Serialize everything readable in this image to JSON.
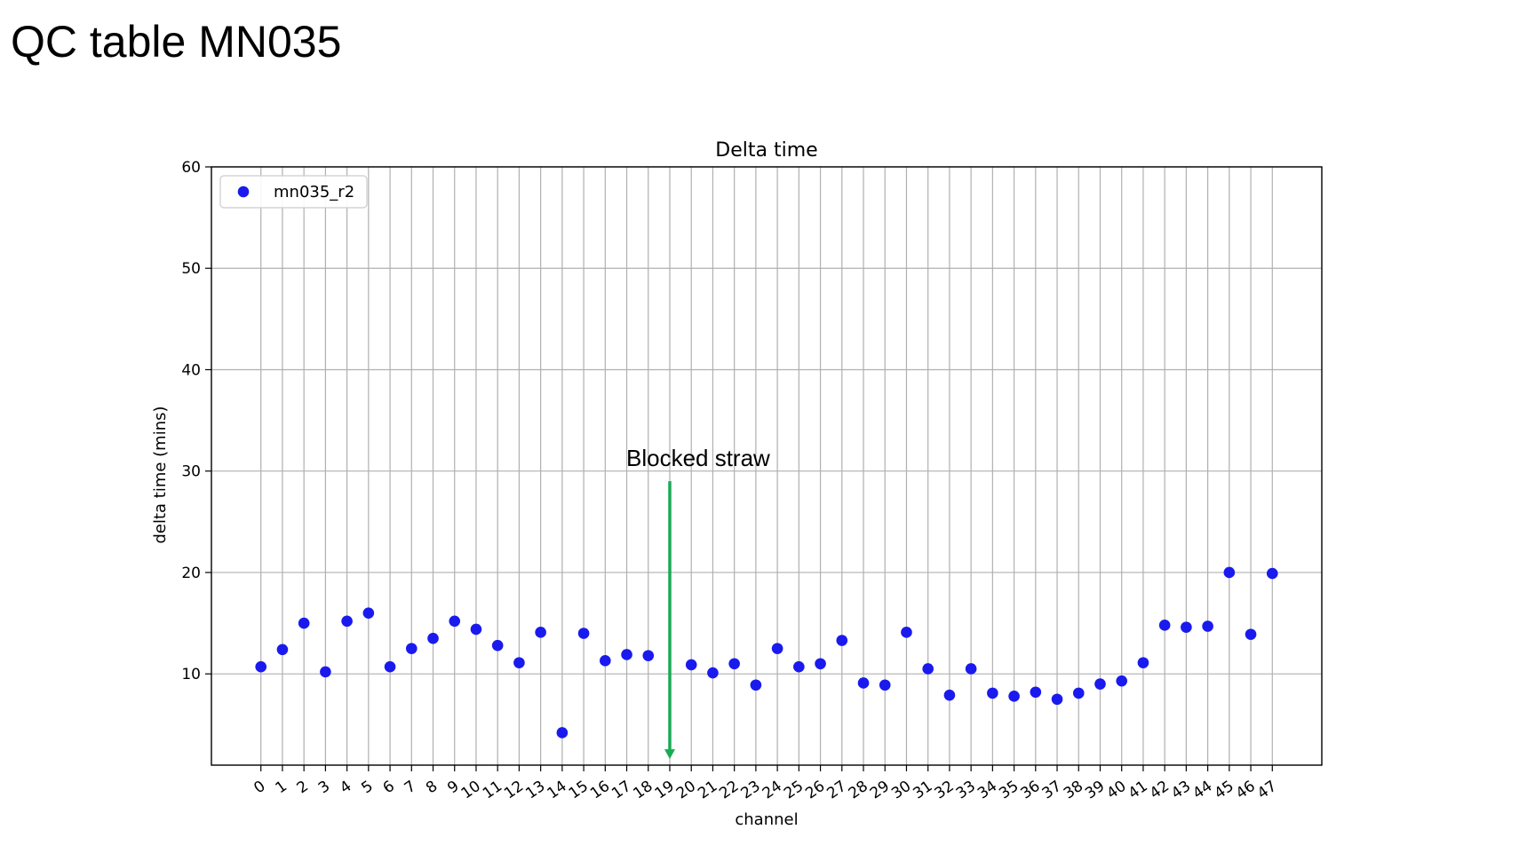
{
  "slide": {
    "title": "QC table MN035"
  },
  "chart_data": {
    "type": "scatter",
    "title": "Delta time",
    "xlabel": "channel",
    "ylabel": "delta time (mins)",
    "xlim": [
      -2.3,
      49.3
    ],
    "ylim": [
      1,
      60
    ],
    "yticks": [
      10,
      20,
      30,
      40,
      50,
      60
    ],
    "grid": true,
    "legend_position": "top-left",
    "series": [
      {
        "name": "mn035_r2",
        "color": "#1a1aee",
        "marker": "circle",
        "x": [
          0,
          1,
          2,
          3,
          4,
          5,
          6,
          7,
          8,
          9,
          10,
          11,
          12,
          13,
          14,
          15,
          16,
          17,
          18,
          19,
          20,
          21,
          22,
          23,
          24,
          25,
          26,
          27,
          28,
          29,
          30,
          31,
          32,
          33,
          34,
          35,
          36,
          37,
          38,
          39,
          40,
          41,
          42,
          43,
          44,
          45,
          46,
          47
        ],
        "values": [
          10.7,
          12.4,
          15.0,
          10.2,
          15.2,
          16.0,
          10.7,
          12.5,
          13.5,
          15.2,
          14.4,
          12.8,
          11.1,
          14.1,
          4.2,
          14.0,
          11.3,
          11.9,
          11.8,
          null,
          10.9,
          10.1,
          11.0,
          8.9,
          12.5,
          10.7,
          11.0,
          13.3,
          9.1,
          8.9,
          14.1,
          10.5,
          7.9,
          10.5,
          8.1,
          7.8,
          8.2,
          7.5,
          8.1,
          9.0,
          9.3,
          11.1,
          14.8,
          14.6,
          14.7,
          20.0,
          13.9,
          19.9
        ]
      }
    ],
    "annotations": [
      {
        "text": "Blocked straw",
        "target_x": 19,
        "arrow_color": "#1aaa55"
      }
    ]
  }
}
